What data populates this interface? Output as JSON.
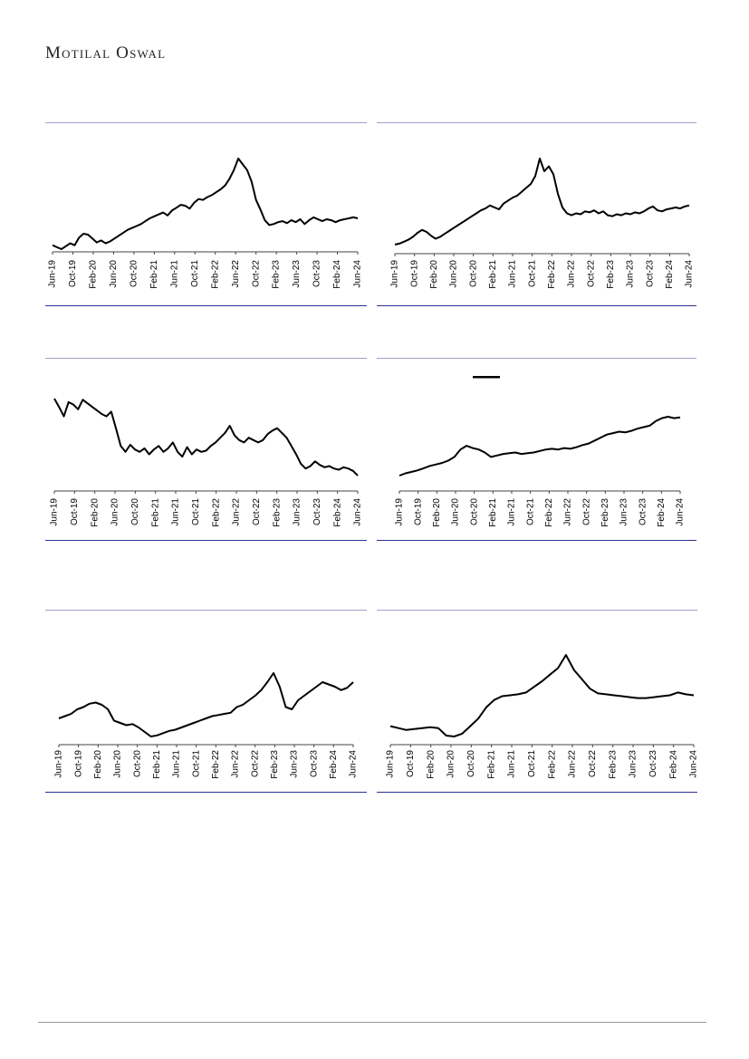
{
  "header": {
    "brand": "Motilal Oswal"
  },
  "chart_data": [
    {
      "type": "line",
      "x_labels": [
        "Jun-19",
        "Oct-19",
        "Feb-20",
        "Jun-20",
        "Oct-20",
        "Feb-21",
        "Jun-21",
        "Oct-21",
        "Feb-22",
        "Jun-22",
        "Oct-22",
        "Feb-23",
        "Jun-23",
        "Oct-23",
        "Feb-24",
        "Jun-24"
      ],
      "series": [
        {
          "values": [
            8,
            6,
            4,
            7,
            10,
            8,
            16,
            20,
            19,
            15,
            11,
            13,
            10,
            12,
            15,
            18,
            21,
            24,
            26,
            28,
            30,
            33,
            36,
            38,
            40,
            42,
            39,
            44,
            47,
            50,
            49,
            46,
            52,
            56,
            55,
            58,
            60,
            63,
            66,
            70,
            77,
            86,
            98,
            92,
            86,
            74,
            55,
            45,
            34,
            29,
            30,
            32,
            33,
            31,
            34,
            32,
            35,
            30,
            34,
            37,
            35,
            33,
            35,
            34,
            32,
            34,
            35,
            36,
            37,
            36
          ]
        }
      ],
      "grid": false,
      "legend": "none"
    },
    {
      "type": "line",
      "x_labels": [
        "Jun-19",
        "Oct-19",
        "Feb-20",
        "Jun-20",
        "Oct-20",
        "Feb-21",
        "Jun-21",
        "Oct-21",
        "Feb-22",
        "Jun-22",
        "Oct-22",
        "Feb-23",
        "Jun-23",
        "Oct-23",
        "Feb-24",
        "Jun-24"
      ],
      "series": [
        {
          "values": [
            10,
            11,
            13,
            15,
            18,
            22,
            25,
            23,
            19,
            16,
            18,
            21,
            24,
            27,
            30,
            33,
            36,
            39,
            42,
            45,
            47,
            50,
            48,
            46,
            52,
            55,
            58,
            60,
            64,
            68,
            72,
            80,
            98,
            85,
            90,
            82,
            62,
            48,
            42,
            40,
            42,
            41,
            44,
            43,
            45,
            42,
            44,
            40,
            39,
            41,
            40,
            42,
            41,
            43,
            42,
            44,
            47,
            49,
            45,
            44,
            46,
            47,
            48,
            47,
            49,
            50
          ]
        }
      ],
      "grid": false,
      "legend": "none"
    },
    {
      "type": "line",
      "x_labels": [
        "Jun-19",
        "Oct-19",
        "Feb-20",
        "Jun-20",
        "Oct-20",
        "Feb-21",
        "Jun-21",
        "Oct-21",
        "Feb-22",
        "Jun-22",
        "Oct-22",
        "Feb-23",
        "Jun-23",
        "Oct-23",
        "Feb-24",
        "Jun-24"
      ],
      "series": [
        {
          "values": [
            95,
            88,
            80,
            92,
            90,
            86,
            94,
            91,
            88,
            85,
            82,
            80,
            84,
            70,
            55,
            50,
            56,
            52,
            50,
            53,
            48,
            52,
            55,
            50,
            53,
            58,
            50,
            46,
            54,
            48,
            52,
            50,
            51,
            55,
            58,
            62,
            66,
            72,
            64,
            60,
            58,
            62,
            60,
            58,
            60,
            65,
            68,
            70,
            66,
            62,
            55,
            48,
            40,
            36,
            38,
            42,
            39,
            37,
            38,
            36,
            35,
            37,
            36,
            34,
            30
          ]
        }
      ],
      "grid": false,
      "legend": "none"
    },
    {
      "type": "line",
      "x_labels": [
        "Jun-19",
        "Oct-19",
        "Feb-20",
        "Jun-20",
        "Oct-20",
        "Feb-21",
        "Jun-21",
        "Oct-21",
        "Feb-22",
        "Jun-22",
        "Oct-22",
        "Feb-23",
        "Jun-23",
        "Oct-23",
        "Feb-24",
        "Jun-24"
      ],
      "series": [
        {
          "values": [
            5,
            8,
            10,
            12,
            15,
            18,
            20,
            22,
            25,
            30,
            40,
            45,
            42,
            40,
            36,
            30,
            32,
            34,
            35,
            36,
            34,
            35,
            36,
            38,
            40,
            41,
            40,
            42,
            41,
            43,
            46,
            48,
            52,
            56,
            60,
            62,
            64,
            63,
            65,
            68,
            70,
            72,
            78,
            82,
            84,
            82,
            83
          ]
        }
      ],
      "grid": false,
      "legend": "none"
    },
    {
      "type": "line",
      "x_labels": [
        "Jun-19",
        "Oct-19",
        "Feb-20",
        "Jun-20",
        "Oct-20",
        "Feb-21",
        "Jun-21",
        "Oct-21",
        "Feb-22",
        "Jun-22",
        "Oct-22",
        "Feb-23",
        "Jun-23",
        "Oct-23",
        "Feb-24",
        "Jun-24"
      ],
      "series": [
        {
          "values": [
            30,
            32,
            34,
            38,
            40,
            43,
            44,
            42,
            38,
            28,
            26,
            24,
            25,
            22,
            18,
            14,
            15,
            17,
            19,
            20,
            22,
            24,
            26,
            28,
            30,
            32,
            33,
            34,
            35,
            40,
            42,
            46,
            50,
            55,
            62,
            70,
            58,
            40,
            38,
            46,
            50,
            54,
            58,
            62,
            60,
            58,
            55,
            57,
            62
          ]
        }
      ],
      "grid": false,
      "legend": "none"
    },
    {
      "type": "line",
      "x_labels": [
        "Jun-19",
        "Oct-19",
        "Feb-20",
        "Jun-20",
        "Oct-20",
        "Feb-21",
        "Jun-21",
        "Oct-21",
        "Feb-22",
        "Jun-22",
        "Oct-22",
        "Feb-23",
        "Jun-23",
        "Oct-23",
        "Feb-24",
        "Jun-24"
      ],
      "series": [
        {
          "values": [
            20,
            18,
            16,
            17,
            18,
            19,
            18,
            10,
            9,
            12,
            20,
            28,
            40,
            48,
            52,
            53,
            54,
            56,
            62,
            68,
            75,
            82,
            96,
            80,
            70,
            60,
            55,
            54,
            53,
            52,
            51,
            50,
            50,
            51,
            52,
            53,
            56,
            54,
            53
          ]
        }
      ],
      "grid": false,
      "legend": "none"
    }
  ]
}
